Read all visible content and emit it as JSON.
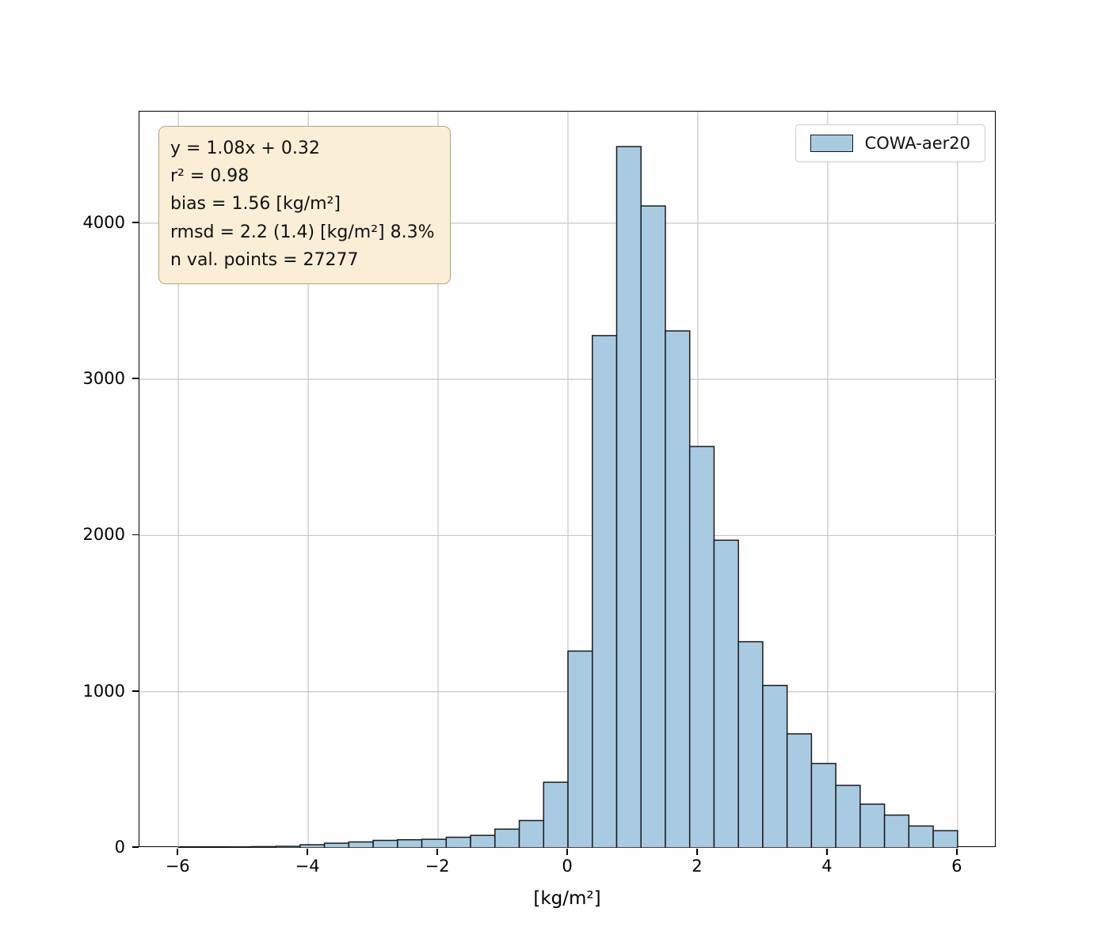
{
  "figure": {
    "background": "#ffffff"
  },
  "chart_data": {
    "type": "bar",
    "subtype": "histogram",
    "title": "",
    "xlabel": "[kg/m²]",
    "ylabel": "",
    "xlim": [
      -6.6,
      6.6
    ],
    "ylim": [
      0,
      4714
    ],
    "grid": true,
    "grid_color": "#c6c6c6",
    "bar_fill": "#a9cbe2",
    "bar_edge": "#1a1a1a",
    "xticks": [
      -6,
      -4,
      -2,
      0,
      2,
      4,
      6
    ],
    "xtick_labels": [
      "−6",
      "−4",
      "−2",
      "0",
      "2",
      "4",
      "6"
    ],
    "yticks": [
      0,
      1000,
      2000,
      3000,
      4000
    ],
    "ytick_labels": [
      "0",
      "1000",
      "2000",
      "3000",
      "4000"
    ],
    "bin_start": -6,
    "bin_width": 0.375,
    "counts": [
      2,
      3,
      5,
      8,
      10,
      20,
      30,
      38,
      48,
      52,
      55,
      68,
      80,
      120,
      175,
      420,
      1260,
      3280,
      4490,
      4110,
      3310,
      2570,
      1970,
      1320,
      1040,
      730,
      540,
      400,
      280,
      210,
      140,
      110
    ],
    "series": [
      {
        "name": "COWA-aer20"
      }
    ],
    "legend_position": "upper right"
  },
  "legend": {
    "label": "COWA-aer20"
  },
  "annotation": {
    "lines": [
      "y = 1.08x + 0.32",
      "r² = 0.98",
      "bias = 1.56 [kg/m²]",
      "rmsd = 2.2 (1.4) [kg/m²] 8.3%",
      "n val. points = 27277"
    ],
    "background": "#faeed7",
    "border": "#b4a284"
  }
}
